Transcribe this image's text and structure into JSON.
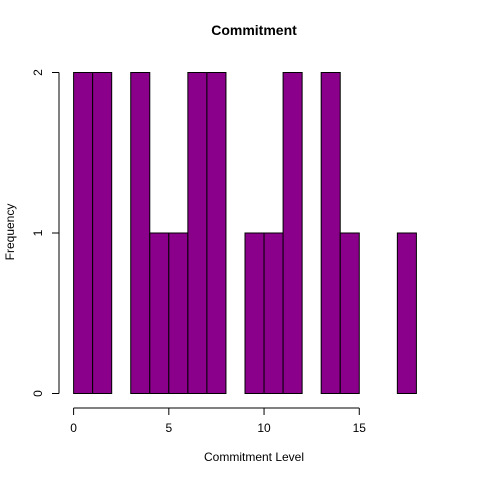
{
  "chart_data": {
    "type": "bar",
    "title": "Commitment",
    "xlabel": "Commitment Level",
    "ylabel": "Frequency",
    "bins": [
      {
        "start": 0,
        "end": 1,
        "count": 2
      },
      {
        "start": 1,
        "end": 2,
        "count": 2
      },
      {
        "start": 2,
        "end": 3,
        "count": 0
      },
      {
        "start": 3,
        "end": 4,
        "count": 2
      },
      {
        "start": 4,
        "end": 5,
        "count": 1
      },
      {
        "start": 5,
        "end": 6,
        "count": 1
      },
      {
        "start": 6,
        "end": 7,
        "count": 2
      },
      {
        "start": 7,
        "end": 8,
        "count": 2
      },
      {
        "start": 8,
        "end": 9,
        "count": 0
      },
      {
        "start": 9,
        "end": 10,
        "count": 1
      },
      {
        "start": 10,
        "end": 11,
        "count": 1
      },
      {
        "start": 11,
        "end": 12,
        "count": 2
      },
      {
        "start": 12,
        "end": 13,
        "count": 0
      },
      {
        "start": 13,
        "end": 14,
        "count": 2
      },
      {
        "start": 14,
        "end": 15,
        "count": 1
      },
      {
        "start": 15,
        "end": 16,
        "count": 0
      },
      {
        "start": 16,
        "end": 17,
        "count": 0
      },
      {
        "start": 17,
        "end": 18,
        "count": 1
      }
    ],
    "xticks": [
      0,
      5,
      10,
      15
    ],
    "yticks": [
      0,
      1,
      2
    ],
    "xlim": [
      0,
      18
    ],
    "ylim": [
      0,
      2
    ],
    "bar_color": "#8B008B",
    "grid": false
  }
}
